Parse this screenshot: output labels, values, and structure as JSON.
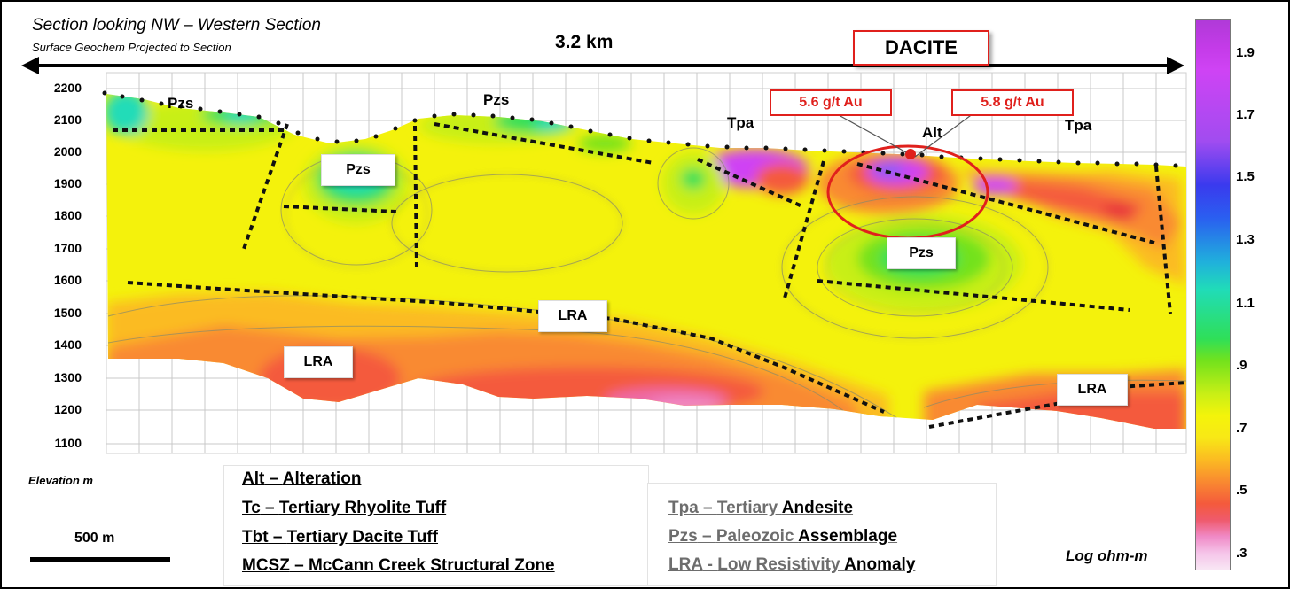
{
  "figure": {
    "title": "Section looking NW – Western Section",
    "subtitle": "Surface Geochem Projected to Section",
    "distance_label": "3.2 km",
    "highlight_label": "DACITE"
  },
  "elevation_axis": {
    "label": "Elevation m",
    "ticks": [
      "2200",
      "2100",
      "2000",
      "1900",
      "1800",
      "1700",
      "1600",
      "1500",
      "1400",
      "1300",
      "1200",
      "1100"
    ]
  },
  "unit_labels": {
    "pzs": "Pzs",
    "tpa": "Tpa",
    "alt": "Alt",
    "lra": "LRA"
  },
  "assays": {
    "left": "5.6 g/t Au",
    "right": "5.8 g/t Au"
  },
  "legend": {
    "left": [
      {
        "code": "Alt",
        "desc": "Alteration"
      },
      {
        "code": "Tc",
        "desc": "Tertiary Rhyolite Tuff"
      },
      {
        "code": "Tbt",
        "desc": "Tertiary Dacite Tuff"
      },
      {
        "code": "MCSZ",
        "desc": "McCann Creek Structural Zone"
      }
    ],
    "right": [
      {
        "code": "Tpa",
        "desc_grey": "Tertiary",
        "desc_dark": "Andesite"
      },
      {
        "code": "Pzs",
        "desc_grey": "Paleozoic",
        "desc_dark": "Assemblage"
      },
      {
        "code": "LRA",
        "desc_grey": "Low Resistivity",
        "desc_dark": "Anomaly"
      }
    ]
  },
  "scale_bar": {
    "label": "500 m"
  },
  "color_scale": {
    "title": "Log ohm-m",
    "ticks": [
      "1.9",
      "1.7",
      "1.5",
      "1.3",
      "1.1",
      ".9",
      ".7",
      ".5",
      ".3"
    ],
    "colors": {
      "high": "#cf43f4",
      "blue": "#3a3aee",
      "cyan": "#20dcb8",
      "green": "#2fdf58",
      "yellow": "#f4f40a",
      "orange": "#f98a30",
      "red": "#f45a3c",
      "low": "#f8e6f4"
    }
  },
  "highlight_color": "#e0201c"
}
